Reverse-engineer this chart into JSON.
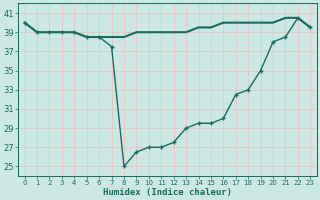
{
  "xlabel": "Humidex (Indice chaleur)",
  "bg_color": "#cce8e4",
  "grid_color": "#e8c8c8",
  "line_color": "#1a6b5e",
  "xlim": [
    -0.5,
    23.5
  ],
  "ylim": [
    24,
    42
  ],
  "yticks": [
    25,
    27,
    29,
    31,
    33,
    35,
    37,
    39,
    41
  ],
  "xticks": [
    0,
    1,
    2,
    3,
    4,
    5,
    6,
    7,
    8,
    9,
    10,
    11,
    12,
    13,
    14,
    15,
    16,
    17,
    18,
    19,
    20,
    21,
    22,
    23
  ],
  "series1_x": [
    0,
    1,
    2,
    3,
    4,
    5,
    6,
    7,
    8,
    9,
    10,
    11,
    12,
    13,
    14,
    15,
    16,
    17,
    18,
    19,
    20,
    21,
    22,
    23
  ],
  "series1_y": [
    40.0,
    39.0,
    39.0,
    39.0,
    39.0,
    38.5,
    38.5,
    38.5,
    38.5,
    39.0,
    39.0,
    39.0,
    39.0,
    39.0,
    39.5,
    39.5,
    40.0,
    40.0,
    40.0,
    40.0,
    40.0,
    40.5,
    40.5,
    39.5
  ],
  "series2_x": [
    0,
    1,
    2,
    3,
    4,
    5,
    6,
    7,
    8,
    9,
    10,
    11,
    12,
    13,
    14,
    15,
    16,
    17,
    18,
    19,
    20,
    21,
    22,
    23
  ],
  "series2_y": [
    40.0,
    39.0,
    39.0,
    39.0,
    39.0,
    38.5,
    38.5,
    37.5,
    25.0,
    26.5,
    27.0,
    27.0,
    27.5,
    29.0,
    29.5,
    29.5,
    30.0,
    32.5,
    33.0,
    35.0,
    38.0,
    38.5,
    40.5,
    39.5
  ],
  "figsize": [
    3.2,
    2.0
  ],
  "dpi": 100
}
